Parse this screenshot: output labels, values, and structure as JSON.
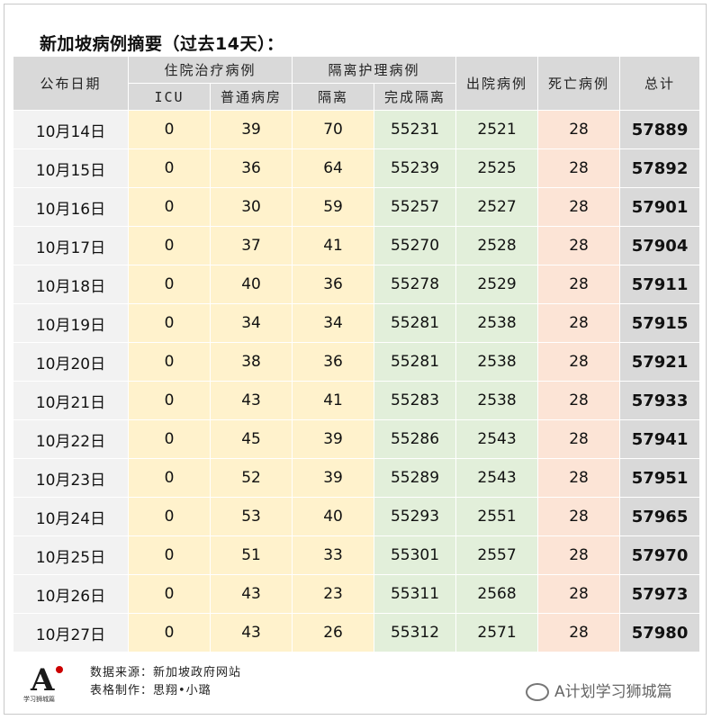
{
  "title": "新加坡病例摘要（过去14天）：",
  "headers": {
    "date": "公布日期",
    "hospitalized": "住院治疗病例",
    "icu": "ICU",
    "ward": "普通病房",
    "isolation_group": "隔离护理病例",
    "isolation": "隔离",
    "completed": "完成隔离",
    "discharged": "出院病例",
    "deaths": "死亡病例",
    "total": "总计"
  },
  "rows": [
    {
      "date": "10月14日",
      "icu": "0",
      "ward": "39",
      "isolation": "70",
      "completed": "55231",
      "discharged": "2521",
      "deaths": "28",
      "total": "57889"
    },
    {
      "date": "10月15日",
      "icu": "0",
      "ward": "36",
      "isolation": "64",
      "completed": "55239",
      "discharged": "2525",
      "deaths": "28",
      "total": "57892"
    },
    {
      "date": "10月16日",
      "icu": "0",
      "ward": "30",
      "isolation": "59",
      "completed": "55257",
      "discharged": "2527",
      "deaths": "28",
      "total": "57901"
    },
    {
      "date": "10月17日",
      "icu": "0",
      "ward": "37",
      "isolation": "41",
      "completed": "55270",
      "discharged": "2528",
      "deaths": "28",
      "total": "57904"
    },
    {
      "date": "10月18日",
      "icu": "0",
      "ward": "40",
      "isolation": "36",
      "completed": "55278",
      "discharged": "2529",
      "deaths": "28",
      "total": "57911"
    },
    {
      "date": "10月19日",
      "icu": "0",
      "ward": "34",
      "isolation": "34",
      "completed": "55281",
      "discharged": "2538",
      "deaths": "28",
      "total": "57915"
    },
    {
      "date": "10月20日",
      "icu": "0",
      "ward": "38",
      "isolation": "36",
      "completed": "55281",
      "discharged": "2538",
      "deaths": "28",
      "total": "57921"
    },
    {
      "date": "10月21日",
      "icu": "0",
      "ward": "43",
      "isolation": "41",
      "completed": "55283",
      "discharged": "2538",
      "deaths": "28",
      "total": "57933"
    },
    {
      "date": "10月22日",
      "icu": "0",
      "ward": "45",
      "isolation": "39",
      "completed": "55286",
      "discharged": "2543",
      "deaths": "28",
      "total": "57941"
    },
    {
      "date": "10月23日",
      "icu": "0",
      "ward": "52",
      "isolation": "39",
      "completed": "55289",
      "discharged": "2543",
      "deaths": "28",
      "total": "57951"
    },
    {
      "date": "10月24日",
      "icu": "0",
      "ward": "53",
      "isolation": "40",
      "completed": "55293",
      "discharged": "2551",
      "deaths": "28",
      "total": "57965"
    },
    {
      "date": "10月25日",
      "icu": "0",
      "ward": "51",
      "isolation": "33",
      "completed": "55301",
      "discharged": "2557",
      "deaths": "28",
      "total": "57970"
    },
    {
      "date": "10月26日",
      "icu": "0",
      "ward": "43",
      "isolation": "23",
      "completed": "55311",
      "discharged": "2568",
      "deaths": "28",
      "total": "57973"
    },
    {
      "date": "10月27日",
      "icu": "0",
      "ward": "43",
      "isolation": "26",
      "completed": "55312",
      "discharged": "2571",
      "deaths": "28",
      "total": "57980"
    }
  ],
  "footer": {
    "source": "数据来源：新加坡政府网站",
    "maker": "表格制作：思翔•小璐"
  },
  "logo": {
    "letter": "A",
    "text": "学习狮城篇"
  },
  "watermark": "A计划学习狮城篇"
}
